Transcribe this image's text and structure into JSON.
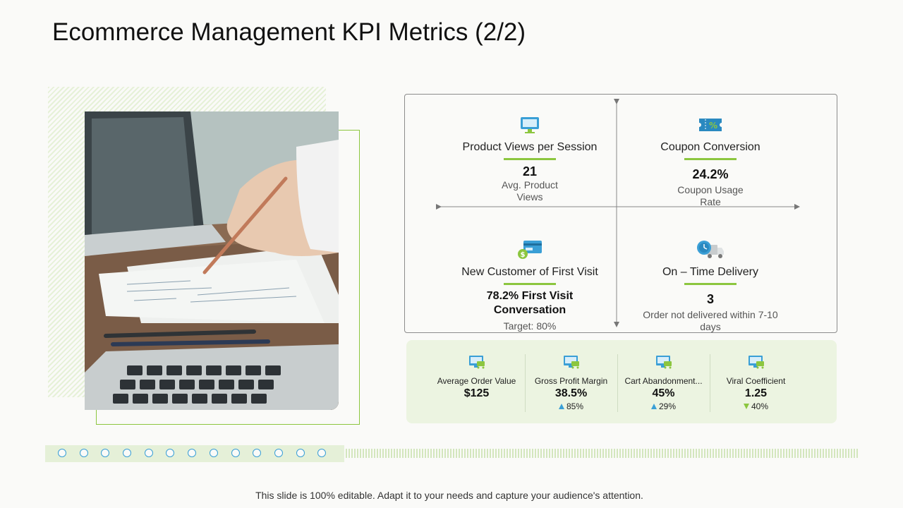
{
  "slide": {
    "title": "Ecommerce Management KPI Metrics (2/2)",
    "footer": "This slide is 100% editable. Adapt it to your needs and capture your audience's attention."
  },
  "quadrants": [
    {
      "icon": "monitor-icon",
      "title": "Product Views per Session",
      "value": "21",
      "sub1": "Avg. Product",
      "sub2": "Views"
    },
    {
      "icon": "coupon-icon",
      "title": "Coupon Conversion",
      "value": "24.2%",
      "sub1": "Coupon Usage",
      "sub2": "Rate"
    },
    {
      "icon": "card-dollar-icon",
      "title": "New Customer of First Visit",
      "value": "78.2% First Visit",
      "value2": "Conversation",
      "sub1": "Target: 80%"
    },
    {
      "icon": "delivery-truck-icon",
      "title": "On – Time Delivery",
      "value": "3",
      "sub1": "Order not delivered within 7-10",
      "sub2": "days"
    }
  ],
  "kpis": [
    {
      "icon": "cart-monitor-icon",
      "label": "Average Order Value",
      "value": "$125"
    },
    {
      "icon": "cart-monitor-icon",
      "label": "Gross Profit Margin",
      "value": "38.5%",
      "change": "85%",
      "direction": "up"
    },
    {
      "icon": "cart-monitor-icon",
      "label": "Cart Abandonment...",
      "value": "45%",
      "change": "29%",
      "direction": "up"
    },
    {
      "icon": "cart-monitor-icon",
      "label": "Viral Coefficient",
      "value": "1.25",
      "change": "40%",
      "direction": "down"
    }
  ],
  "colors": {
    "accent_green": "#8cc63f",
    "accent_blue": "#3a9fd6",
    "panel_bg": "#ecf4e1"
  }
}
